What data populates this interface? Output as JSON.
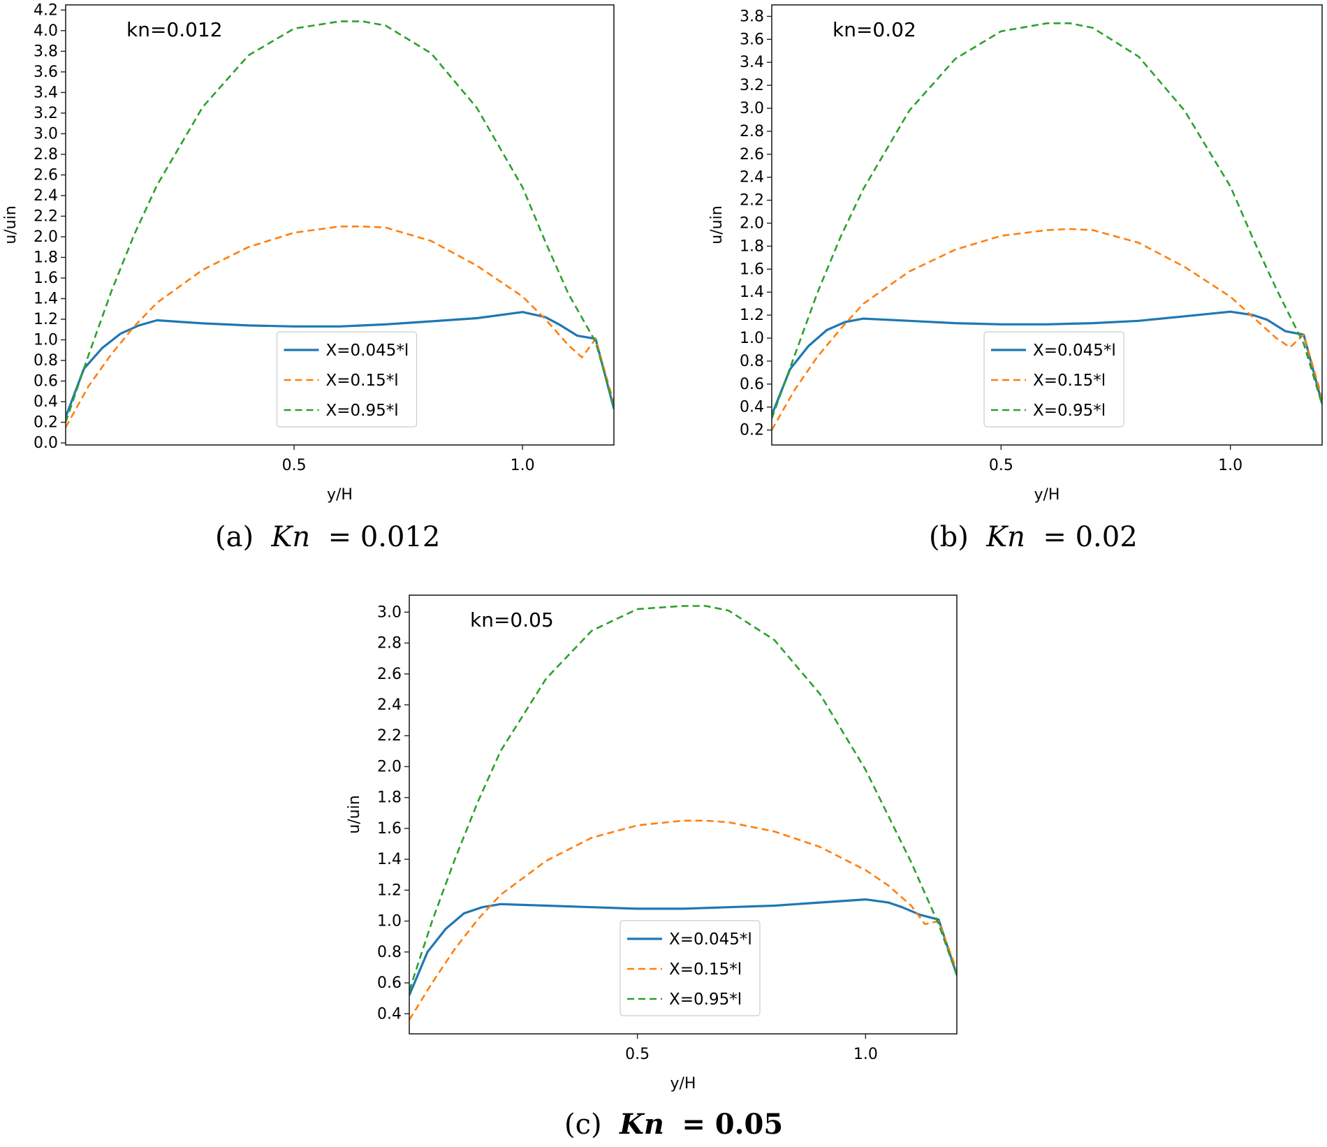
{
  "chart_data": [
    {
      "type": "line",
      "annotation": "kn=0.012",
      "xlabel": "y/H",
      "ylabel": "u/uin",
      "xlim": [
        0.0,
        1.2
      ],
      "ylim": [
        -0.02,
        4.25
      ],
      "xticks": [
        0.5,
        1.0
      ],
      "xtick_labels": [
        "0.5",
        "1.0"
      ],
      "yticks": [
        0.0,
        0.2,
        0.4,
        0.6,
        0.8,
        1.0,
        1.2,
        1.4,
        1.6,
        1.8,
        2.0,
        2.2,
        2.4,
        2.6,
        2.8,
        3.0,
        3.2,
        3.4,
        3.6,
        3.8,
        4.0,
        4.2
      ],
      "ytick_labels": [
        "0.0",
        "0.2",
        "0.4",
        "0.6",
        "0.8",
        "1.0",
        "1.2",
        "1.4",
        "1.6",
        "1.8",
        "2.0",
        "2.2",
        "2.4",
        "2.6",
        "2.8",
        "3.0",
        "3.2",
        "3.4",
        "3.6",
        "3.8",
        "4.0",
        "4.2"
      ],
      "legend": {
        "position": "lower center"
      },
      "series": [
        {
          "name": "X=0.045*l",
          "style": "solid",
          "color": "#1f77b4",
          "x": [
            0.0,
            0.04,
            0.08,
            0.12,
            0.16,
            0.2,
            0.3,
            0.4,
            0.5,
            0.6,
            0.7,
            0.8,
            0.9,
            1.0,
            1.05,
            1.08,
            1.12,
            1.16,
            1.2
          ],
          "y": [
            0.25,
            0.72,
            0.92,
            1.06,
            1.14,
            1.19,
            1.16,
            1.14,
            1.13,
            1.13,
            1.15,
            1.18,
            1.21,
            1.27,
            1.22,
            1.15,
            1.04,
            1.01,
            0.33
          ]
        },
        {
          "name": "X=0.15*l",
          "style": "dashed",
          "color": "#ff7f0e",
          "x": [
            0.0,
            0.05,
            0.1,
            0.15,
            0.2,
            0.3,
            0.4,
            0.5,
            0.6,
            0.65,
            0.7,
            0.8,
            0.9,
            1.0,
            1.05,
            1.1,
            1.13,
            1.16,
            1.2
          ],
          "y": [
            0.15,
            0.55,
            0.86,
            1.13,
            1.36,
            1.68,
            1.9,
            2.04,
            2.1,
            2.1,
            2.09,
            1.96,
            1.72,
            1.42,
            1.2,
            0.95,
            0.83,
            1.01,
            0.38
          ]
        },
        {
          "name": "X=0.95*l",
          "style": "dashed",
          "color": "#2ca02c",
          "x": [
            0.0,
            0.05,
            0.1,
            0.15,
            0.2,
            0.3,
            0.4,
            0.5,
            0.6,
            0.65,
            0.7,
            0.8,
            0.9,
            1.0,
            1.05,
            1.1,
            1.16,
            1.2
          ],
          "y": [
            0.2,
            0.85,
            1.47,
            2.02,
            2.5,
            3.26,
            3.76,
            4.02,
            4.09,
            4.09,
            4.05,
            3.78,
            3.25,
            2.48,
            1.95,
            1.45,
            0.98,
            0.35
          ]
        }
      ]
    },
    {
      "type": "line",
      "annotation": "kn=0.02",
      "xlabel": "y/H",
      "ylabel": "u/uin",
      "xlim": [
        0.0,
        1.2
      ],
      "ylim": [
        0.07,
        3.9
      ],
      "xticks": [
        0.5,
        1.0
      ],
      "xtick_labels": [
        "0.5",
        "1.0"
      ],
      "yticks": [
        0.2,
        0.4,
        0.6,
        0.8,
        1.0,
        1.2,
        1.4,
        1.6,
        1.8,
        2.0,
        2.2,
        2.4,
        2.6,
        2.8,
        3.0,
        3.2,
        3.4,
        3.6,
        3.8
      ],
      "ytick_labels": [
        "0.2",
        "0.4",
        "0.6",
        "0.8",
        "1.0",
        "1.2",
        "1.4",
        "1.6",
        "1.8",
        "2.0",
        "2.2",
        "2.4",
        "2.6",
        "2.8",
        "3.0",
        "3.2",
        "3.4",
        "3.6",
        "3.8"
      ],
      "legend": {
        "position": "lower center"
      },
      "series": [
        {
          "name": "X=0.045*l",
          "style": "solid",
          "color": "#1f77b4",
          "x": [
            0.0,
            0.04,
            0.08,
            0.12,
            0.16,
            0.2,
            0.3,
            0.4,
            0.5,
            0.6,
            0.7,
            0.8,
            0.9,
            1.0,
            1.05,
            1.08,
            1.12,
            1.16,
            1.2
          ],
          "y": [
            0.33,
            0.73,
            0.93,
            1.07,
            1.14,
            1.17,
            1.15,
            1.13,
            1.12,
            1.12,
            1.13,
            1.15,
            1.19,
            1.23,
            1.2,
            1.16,
            1.06,
            1.03,
            0.43
          ]
        },
        {
          "name": "X=0.15*l",
          "style": "dashed",
          "color": "#ff7f0e",
          "x": [
            0.0,
            0.05,
            0.1,
            0.15,
            0.2,
            0.3,
            0.4,
            0.5,
            0.6,
            0.65,
            0.7,
            0.8,
            0.9,
            1.0,
            1.05,
            1.1,
            1.13,
            1.16,
            1.2
          ],
          "y": [
            0.2,
            0.55,
            0.84,
            1.08,
            1.3,
            1.58,
            1.77,
            1.89,
            1.94,
            1.95,
            1.94,
            1.83,
            1.62,
            1.36,
            1.18,
            1.0,
            0.92,
            1.03,
            0.48
          ]
        },
        {
          "name": "X=0.95*l",
          "style": "dashed",
          "color": "#2ca02c",
          "x": [
            0.0,
            0.05,
            0.1,
            0.15,
            0.2,
            0.3,
            0.4,
            0.5,
            0.6,
            0.65,
            0.7,
            0.8,
            0.9,
            1.0,
            1.05,
            1.1,
            1.16,
            1.2
          ],
          "y": [
            0.3,
            0.85,
            1.4,
            1.88,
            2.3,
            2.98,
            3.43,
            3.67,
            3.74,
            3.74,
            3.7,
            3.45,
            2.98,
            2.32,
            1.86,
            1.43,
            0.95,
            0.42
          ]
        }
      ]
    },
    {
      "type": "line",
      "annotation": "kn=0.05",
      "xlabel": "y/H",
      "ylabel": "u/uin",
      "xlim": [
        0.0,
        1.2
      ],
      "ylim": [
        0.27,
        3.11
      ],
      "xticks": [
        0.5,
        1.0
      ],
      "xtick_labels": [
        "0.5",
        "1.0"
      ],
      "yticks": [
        0.4,
        0.6,
        0.8,
        1.0,
        1.2,
        1.4,
        1.6,
        1.8,
        2.0,
        2.2,
        2.4,
        2.6,
        2.8,
        3.0
      ],
      "ytick_labels": [
        "0.4",
        "0.6",
        "0.8",
        "1.0",
        "1.2",
        "1.4",
        "1.6",
        "1.8",
        "2.0",
        "2.2",
        "2.4",
        "2.6",
        "2.8",
        "3.0"
      ],
      "legend": {
        "position": "lower center"
      },
      "series": [
        {
          "name": "X=0.045*l",
          "style": "solid",
          "color": "#1f77b4",
          "x": [
            0.0,
            0.04,
            0.08,
            0.12,
            0.16,
            0.2,
            0.3,
            0.4,
            0.5,
            0.6,
            0.7,
            0.8,
            0.9,
            1.0,
            1.05,
            1.08,
            1.12,
            1.16,
            1.2
          ],
          "y": [
            0.52,
            0.8,
            0.95,
            1.05,
            1.09,
            1.11,
            1.1,
            1.09,
            1.08,
            1.08,
            1.09,
            1.1,
            1.12,
            1.14,
            1.12,
            1.09,
            1.04,
            1.01,
            0.65
          ]
        },
        {
          "name": "X=0.15*l",
          "style": "dashed",
          "color": "#ff7f0e",
          "x": [
            0.0,
            0.05,
            0.1,
            0.15,
            0.2,
            0.3,
            0.4,
            0.5,
            0.6,
            0.65,
            0.7,
            0.8,
            0.9,
            1.0,
            1.05,
            1.1,
            1.13,
            1.16,
            1.2
          ],
          "y": [
            0.36,
            0.6,
            0.82,
            1.01,
            1.17,
            1.39,
            1.54,
            1.62,
            1.65,
            1.65,
            1.64,
            1.58,
            1.48,
            1.33,
            1.23,
            1.1,
            0.98,
            1.0,
            0.68
          ]
        },
        {
          "name": "X=0.95*l",
          "style": "dashed",
          "color": "#2ca02c",
          "x": [
            0.0,
            0.05,
            0.1,
            0.15,
            0.2,
            0.3,
            0.4,
            0.5,
            0.6,
            0.65,
            0.7,
            0.8,
            0.9,
            1.0,
            1.05,
            1.1,
            1.16,
            1.2
          ],
          "y": [
            0.55,
            1.0,
            1.4,
            1.77,
            2.1,
            2.57,
            2.88,
            3.02,
            3.04,
            3.04,
            3.01,
            2.82,
            2.47,
            1.98,
            1.68,
            1.38,
            0.98,
            0.65
          ]
        }
      ]
    }
  ],
  "captions": [
    {
      "prefix": "(a)",
      "symbol": "Kn",
      "eq": "= 0.012"
    },
    {
      "prefix": "(b)",
      "symbol": "Kn",
      "eq": "= 0.02"
    },
    {
      "prefix": "(c)",
      "symbol": "Kn",
      "eq": "= 0.05"
    }
  ]
}
